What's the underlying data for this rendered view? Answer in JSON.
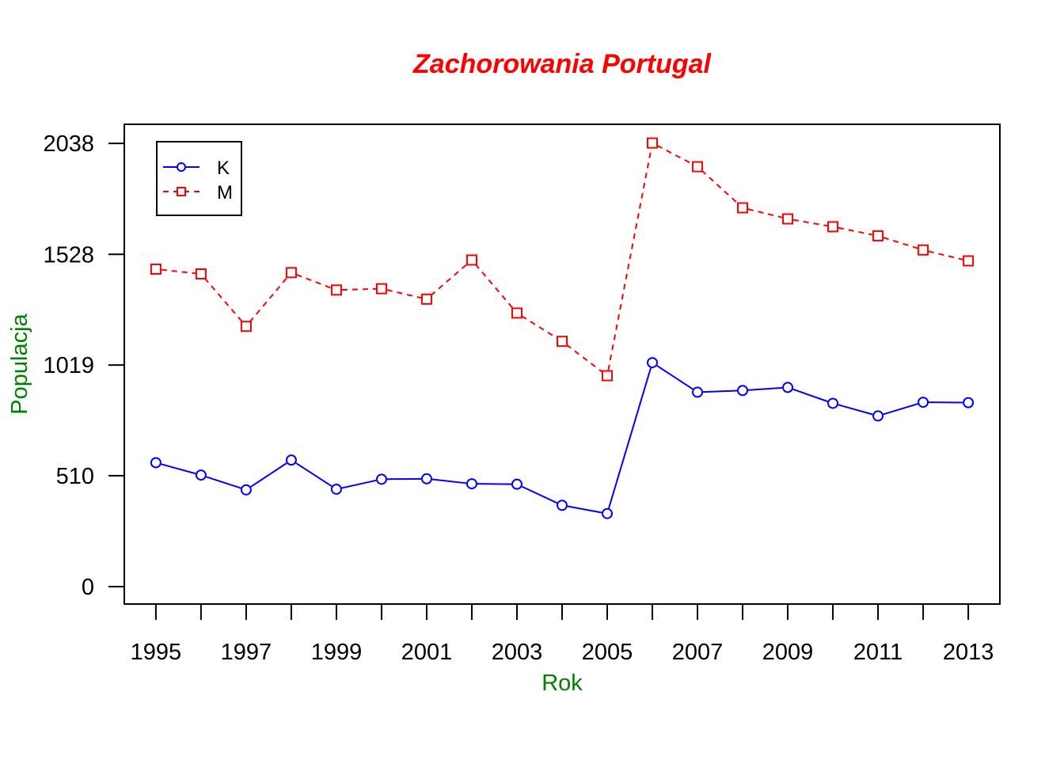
{
  "chart_data": {
    "type": "line",
    "title": "Zachorowania Portugal",
    "xlabel": "Rok",
    "ylabel": "Populacja",
    "x": [
      1995,
      1996,
      1997,
      1998,
      1999,
      2000,
      2001,
      2002,
      2003,
      2004,
      2005,
      2006,
      2007,
      2008,
      2009,
      2010,
      2011,
      2012,
      2013
    ],
    "x_tick_labels": [
      "1995",
      "1997",
      "1999",
      "2001",
      "2003",
      "2005",
      "2007",
      "2009",
      "2011",
      "2013"
    ],
    "y_ticks": [
      0,
      510,
      1019,
      1528,
      2038
    ],
    "y_tick_labels": [
      "0",
      "510",
      "1019",
      "1528",
      "2038"
    ],
    "xlim": [
      1994.3,
      2013.7
    ],
    "ylim": [
      -80,
      2126
    ],
    "legend_position": "top-left",
    "series": [
      {
        "name": "K",
        "color": "#0000ff",
        "line_style": "solid",
        "marker": "circle",
        "values": [
          570,
          513,
          445,
          582,
          448,
          494,
          496,
          473,
          471,
          374,
          336,
          1030,
          894,
          902,
          916,
          843,
          785,
          848,
          846
        ]
      },
      {
        "name": "M",
        "color": "#ff0000",
        "line_style": "dashed",
        "marker": "square",
        "values": [
          1460,
          1438,
          1197,
          1444,
          1364,
          1370,
          1322,
          1502,
          1258,
          1128,
          970,
          2040,
          1931,
          1742,
          1691,
          1655,
          1613,
          1548,
          1498
        ]
      }
    ]
  }
}
